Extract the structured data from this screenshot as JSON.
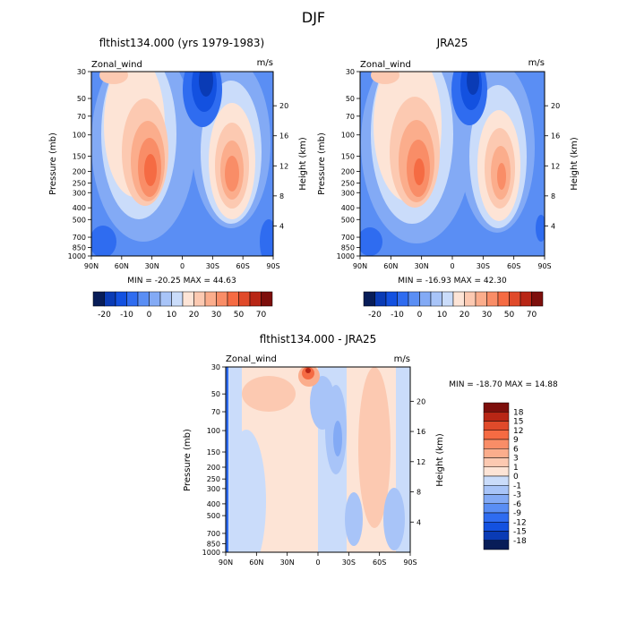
{
  "title": "DJF",
  "colors": {
    "neg": [
      "#081d58",
      "#0a3bb5",
      "#1351e0",
      "#2f6cf0",
      "#5a8ef4",
      "#83aaf5",
      "#a8c4f8",
      "#cadcfa"
    ],
    "pos": [
      "#fde4d6",
      "#fcc9b1",
      "#fbad8c",
      "#f98d67",
      "#f56b43",
      "#e04a2a",
      "#b82615",
      "#7d0f0c"
    ]
  },
  "chart_data": [
    {
      "type": "contour",
      "title": "flthist134.000 (yrs 1979-1983)",
      "left_label": "Zonal_wind",
      "right_label": "m/s",
      "xlabel": "",
      "ylabel": "Pressure (mb)",
      "y2label": "Height (km)",
      "x_ticks": [
        "90N",
        "60N",
        "30N",
        "0",
        "30S",
        "60S",
        "90S"
      ],
      "y_ticks": [
        "30",
        "50",
        "70",
        "100",
        "150",
        "200",
        "250",
        "300",
        "400",
        "500",
        "700",
        "850",
        "1000"
      ],
      "y2_ticks": [
        "20",
        "16",
        "12",
        "8",
        "4"
      ],
      "stats": "MIN = -20.25   MAX =  44.63",
      "colorbar_labels": [
        "-20",
        "-10",
        "0",
        "10",
        "20",
        "30",
        "50",
        "70"
      ],
      "min": -20.25,
      "max": 44.63
    },
    {
      "type": "contour",
      "title": "JRA25",
      "left_label": "Zonal_wind",
      "right_label": "m/s",
      "xlabel": "",
      "ylabel": "Pressure (mb)",
      "y2label": "Height (km)",
      "x_ticks": [
        "90N",
        "60N",
        "30N",
        "0",
        "30S",
        "60S",
        "90S"
      ],
      "y_ticks": [
        "30",
        "50",
        "70",
        "100",
        "150",
        "200",
        "250",
        "300",
        "400",
        "500",
        "700",
        "850",
        "1000"
      ],
      "y2_ticks": [
        "20",
        "16",
        "12",
        "8",
        "4"
      ],
      "stats": "MIN = -16.93   MAX =  42.30",
      "colorbar_labels": [
        "-20",
        "-10",
        "0",
        "10",
        "20",
        "30",
        "50",
        "70"
      ],
      "min": -16.93,
      "max": 42.3
    },
    {
      "type": "contour",
      "title": "flthist134.000 - JRA25",
      "left_label": "Zonal_wind",
      "right_label": "m/s",
      "xlabel": "",
      "ylabel": "Pressure (mb)",
      "y2label": "Height (km)",
      "x_ticks": [
        "90N",
        "60N",
        "30N",
        "0",
        "30S",
        "60S",
        "90S"
      ],
      "y_ticks": [
        "30",
        "50",
        "70",
        "100",
        "150",
        "200",
        "250",
        "300",
        "400",
        "500",
        "700",
        "850",
        "1000"
      ],
      "y2_ticks": [
        "20",
        "16",
        "12",
        "8",
        "4"
      ],
      "stats": "MIN = -18.70   MAX =  14.88",
      "colorbar_labels": [
        "18",
        "15",
        "12",
        "9",
        "6",
        "3",
        "1",
        "0",
        "-1",
        "-3",
        "-6",
        "-9",
        "-12",
        "-15",
        "-18"
      ],
      "min": -18.7,
      "max": 14.88
    }
  ]
}
